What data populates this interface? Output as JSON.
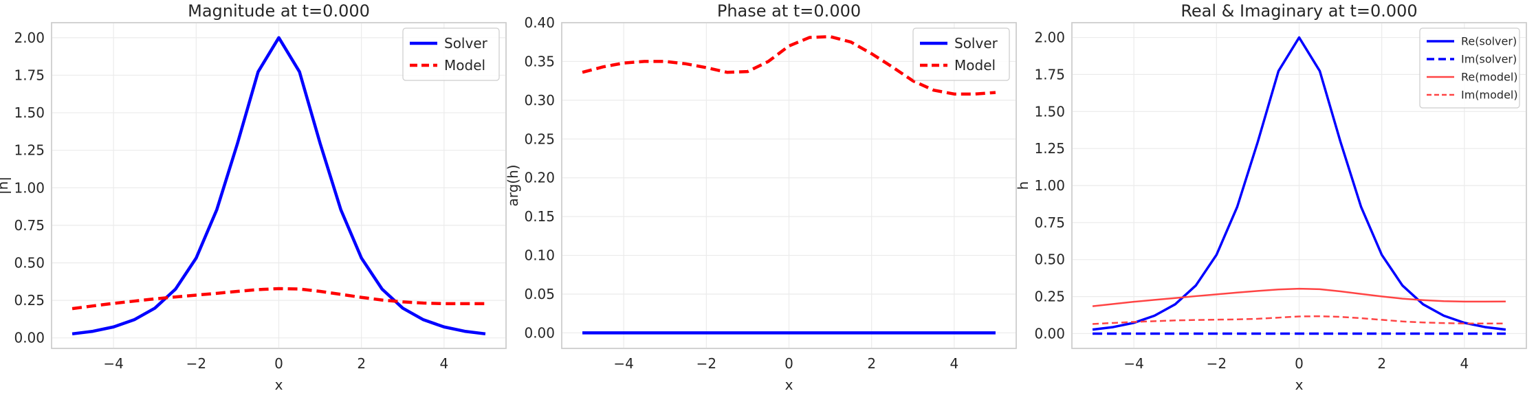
{
  "chart_data": [
    {
      "type": "line",
      "title": "Magnitude at t=0.000",
      "xlabel": "x",
      "ylabel": "|h|",
      "xlim": [
        -5.5,
        5.5
      ],
      "ylim": [
        -0.07,
        2.1
      ],
      "xticks": [
        -4,
        -2,
        0,
        2,
        4
      ],
      "yticks": [
        0.0,
        0.25,
        0.5,
        0.75,
        1.0,
        1.25,
        1.5,
        1.75,
        2.0
      ],
      "xtick_labels": [
        "−4",
        "−2",
        "0",
        "2",
        "4"
      ],
      "ytick_labels": [
        "0.00",
        "0.25",
        "0.50",
        "0.75",
        "1.00",
        "1.25",
        "1.50",
        "1.75",
        "2.00"
      ],
      "grid": true,
      "legend_position": "top-right",
      "series": [
        {
          "name": "Solver",
          "color": "#0000ff",
          "style": "solid",
          "x": [
            -5,
            -4.5,
            -4,
            -3.5,
            -3,
            -2.5,
            -2,
            -1.5,
            -1,
            -0.5,
            0,
            0.5,
            1,
            1.5,
            2,
            2.5,
            3,
            3.5,
            4,
            4.5,
            5
          ],
          "y": [
            0.027,
            0.044,
            0.073,
            0.121,
            0.198,
            0.325,
            0.532,
            0.855,
            1.296,
            1.773,
            2.0,
            1.773,
            1.296,
            0.855,
            0.532,
            0.325,
            0.198,
            0.121,
            0.073,
            0.044,
            0.027
          ]
        },
        {
          "name": "Model",
          "color": "#ff0000",
          "style": "dashed",
          "x": [
            -5,
            -4.5,
            -4,
            -3.5,
            -3,
            -2.5,
            -2,
            -1.5,
            -1,
            -0.5,
            0,
            0.5,
            1,
            1.5,
            2,
            2.5,
            3,
            3.5,
            4,
            4.5,
            5
          ],
          "y": [
            0.195,
            0.213,
            0.23,
            0.245,
            0.26,
            0.273,
            0.285,
            0.297,
            0.31,
            0.322,
            0.328,
            0.326,
            0.31,
            0.29,
            0.27,
            0.252,
            0.24,
            0.232,
            0.228,
            0.228,
            0.228
          ]
        }
      ]
    },
    {
      "type": "line",
      "title": "Phase at t=0.000",
      "xlabel": "x",
      "ylabel": "arg(h)",
      "xlim": [
        -5.5,
        5.5
      ],
      "ylim": [
        -0.02,
        0.4
      ],
      "xticks": [
        -4,
        -2,
        0,
        2,
        4
      ],
      "yticks": [
        0.0,
        0.05,
        0.1,
        0.15,
        0.2,
        0.25,
        0.3,
        0.35,
        0.4
      ],
      "xtick_labels": [
        "−4",
        "−2",
        "0",
        "2",
        "4"
      ],
      "ytick_labels": [
        "0.00",
        "0.05",
        "0.10",
        "0.15",
        "0.20",
        "0.25",
        "0.30",
        "0.35",
        "0.40"
      ],
      "grid": true,
      "legend_position": "top-right",
      "series": [
        {
          "name": "Solver",
          "color": "#0000ff",
          "style": "solid",
          "x": [
            -5,
            5
          ],
          "y": [
            0.0,
            0.0
          ]
        },
        {
          "name": "Model",
          "color": "#ff0000",
          "style": "dashed",
          "x": [
            -5,
            -4.5,
            -4,
            -3.5,
            -3,
            -2.5,
            -2,
            -1.5,
            -1,
            -0.5,
            0,
            0.5,
            1,
            1.5,
            2,
            2.5,
            3,
            3.5,
            4,
            4.5,
            5
          ],
          "y": [
            0.336,
            0.343,
            0.348,
            0.35,
            0.35,
            0.347,
            0.342,
            0.336,
            0.337,
            0.35,
            0.37,
            0.381,
            0.382,
            0.375,
            0.36,
            0.343,
            0.325,
            0.313,
            0.308,
            0.308,
            0.31
          ]
        }
      ]
    },
    {
      "type": "line",
      "title": "Real & Imaginary at t=0.000",
      "xlabel": "x",
      "ylabel": "h",
      "xlim": [
        -5.5,
        5.5
      ],
      "ylim": [
        -0.1,
        2.1
      ],
      "xticks": [
        -4,
        -2,
        0,
        2,
        4
      ],
      "yticks": [
        0.0,
        0.25,
        0.5,
        0.75,
        1.0,
        1.25,
        1.5,
        1.75,
        2.0
      ],
      "xtick_labels": [
        "−4",
        "−2",
        "0",
        "2",
        "4"
      ],
      "ytick_labels": [
        "0.00",
        "0.25",
        "0.50",
        "0.75",
        "1.00",
        "1.25",
        "1.50",
        "1.75",
        "2.00"
      ],
      "grid": true,
      "legend_position": "top-right",
      "series": [
        {
          "name": "Re(solver)",
          "color": "#0000ff",
          "style": "solid",
          "x": [
            -5,
            -4.5,
            -4,
            -3.5,
            -3,
            -2.5,
            -2,
            -1.5,
            -1,
            -0.5,
            0,
            0.5,
            1,
            1.5,
            2,
            2.5,
            3,
            3.5,
            4,
            4.5,
            5
          ],
          "y": [
            0.027,
            0.044,
            0.073,
            0.121,
            0.198,
            0.325,
            0.532,
            0.855,
            1.296,
            1.773,
            2.0,
            1.773,
            1.296,
            0.855,
            0.532,
            0.325,
            0.198,
            0.121,
            0.073,
            0.044,
            0.027
          ]
        },
        {
          "name": "Im(solver)",
          "color": "#0000ff",
          "style": "dashed",
          "x": [
            -5,
            5
          ],
          "y": [
            0.0,
            0.0
          ]
        },
        {
          "name": "Re(model)",
          "color": "#ff4444",
          "style": "solid-thin",
          "x": [
            -5,
            -4.5,
            -4,
            -3.5,
            -3,
            -2.5,
            -2,
            -1.5,
            -1,
            -0.5,
            0,
            0.5,
            1,
            1.5,
            2,
            2.5,
            3,
            3.5,
            4,
            4.5,
            5
          ],
          "y": [
            0.185,
            0.2,
            0.215,
            0.228,
            0.24,
            0.253,
            0.265,
            0.277,
            0.288,
            0.298,
            0.303,
            0.3,
            0.285,
            0.268,
            0.251,
            0.236,
            0.226,
            0.219,
            0.216,
            0.216,
            0.217
          ]
        },
        {
          "name": "Im(model)",
          "color": "#ff4444",
          "style": "dashed-thin",
          "x": [
            -5,
            -4.5,
            -4,
            -3.5,
            -3,
            -2.5,
            -2,
            -1.5,
            -1,
            -0.5,
            0,
            0.5,
            1,
            1.5,
            2,
            2.5,
            3,
            3.5,
            4,
            4.5,
            5
          ],
          "y": [
            0.065,
            0.072,
            0.079,
            0.084,
            0.089,
            0.092,
            0.094,
            0.096,
            0.1,
            0.108,
            0.116,
            0.117,
            0.113,
            0.104,
            0.093,
            0.082,
            0.075,
            0.071,
            0.068,
            0.068,
            0.068
          ]
        }
      ]
    }
  ]
}
